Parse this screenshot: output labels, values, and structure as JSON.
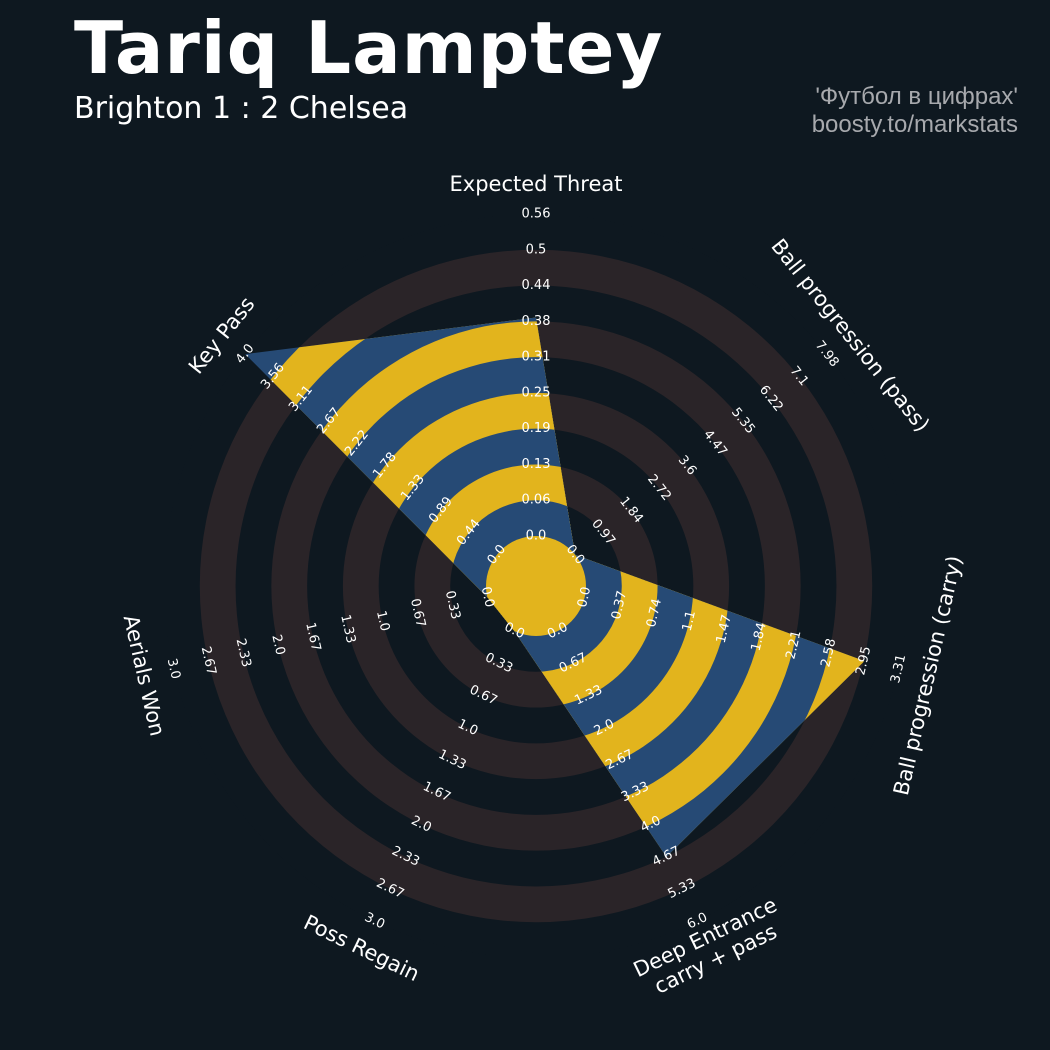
{
  "header": {
    "title": "Tariq Lamptey",
    "subtitle": "Brighton 1 : 2 Chelsea",
    "credit_line1": "'Футбол в цифрах'",
    "credit_line2": "boosty.to/markstats"
  },
  "colors": {
    "background": "#0e1820",
    "rings_dark": "#2a2428",
    "value_blue": "#264a75",
    "value_gold": "#e2b41d",
    "text": "#ffffff"
  },
  "chart_data": {
    "type": "radar",
    "title": "Tariq Lamptey",
    "subtitle": "Brighton 1 : 2 Chelsea",
    "legend": "none",
    "grid": "alternating concentric rings",
    "axes": [
      {
        "label": "Expected Threat",
        "min": 0.0,
        "max": 0.56,
        "value": 0.38,
        "ticks": [
          "0.0",
          "0.06",
          "0.13",
          "0.19",
          "0.25",
          "0.31",
          "0.38",
          "0.44",
          "0.5",
          "0.56"
        ]
      },
      {
        "label": "Ball progression (pass)",
        "min": 0.0,
        "max": 7.98,
        "value": 0.0,
        "ticks": [
          "0.0",
          "0.97",
          "1.84",
          "2.72",
          "3.6",
          "4.47",
          "5.35",
          "6.22",
          "7.1",
          "7.98"
        ]
      },
      {
        "label": "Ball progression (carry)",
        "min": 0.0,
        "max": 3.31,
        "value": 2.95,
        "ticks": [
          "0.0",
          "0.37",
          "0.74",
          "1.1",
          "1.47",
          "1.84",
          "2.21",
          "2.58",
          "2.95",
          "3.31"
        ]
      },
      {
        "label": "Deep Entrance\ncarry + pass",
        "min": 0.0,
        "max": 6.0,
        "value": 4.67,
        "ticks": [
          "0.0",
          "0.67",
          "1.33",
          "2.0",
          "2.67",
          "3.33",
          "4.0",
          "4.67",
          "5.33",
          "6.0"
        ]
      },
      {
        "label": "Poss Regain",
        "min": 0.0,
        "max": 3.0,
        "value": 0.0,
        "ticks": [
          "0.0",
          "0.33",
          "0.67",
          "1.0",
          "1.33",
          "1.67",
          "2.0",
          "2.33",
          "2.67",
          "3.0"
        ]
      },
      {
        "label": "Aerials Won",
        "min": 0.0,
        "max": 3.0,
        "value": 0.0,
        "ticks": [
          "0.0",
          "0.33",
          "0.67",
          "1.0",
          "1.33",
          "1.67",
          "2.0",
          "2.33",
          "2.67",
          "3.0"
        ]
      },
      {
        "label": "Key Pass",
        "min": 0.0,
        "max": 4.0,
        "value": 4.0,
        "ticks": [
          "0.0",
          "0.44",
          "0.89",
          "1.33",
          "1.78",
          "2.22",
          "2.67",
          "3.11",
          "3.56",
          "4.0"
        ]
      }
    ]
  }
}
